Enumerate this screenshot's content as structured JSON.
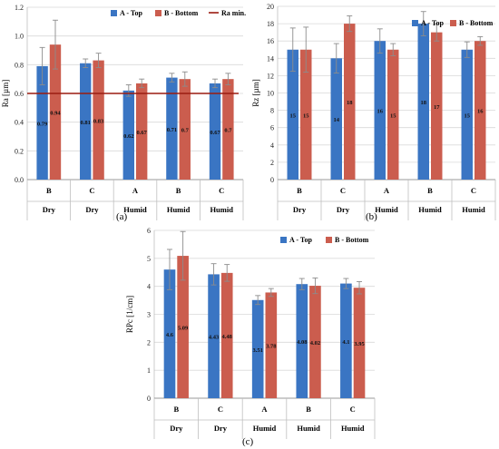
{
  "chart_data": [
    {
      "type": "bar",
      "panel_label": "(a)",
      "ylabel": "Ra [µm]",
      "ylim": [
        0,
        1.2
      ],
      "yticks": [
        "0.0",
        "0.2",
        "0.4",
        "0.6",
        "0.8",
        "1.0",
        "1.2"
      ],
      "categories": [
        "B",
        "C",
        "A",
        "B",
        "C"
      ],
      "groups": [
        "Dry",
        "Dry",
        "Humid",
        "Humid",
        "Humid"
      ],
      "series": [
        {
          "name": "A - Top",
          "color": "#3a75c3",
          "values": [
            0.79,
            0.81,
            0.62,
            0.71,
            0.67
          ],
          "labels": [
            "0.79",
            "0.81",
            "0.62",
            "0.71",
            "0.67"
          ],
          "errors": [
            0.13,
            0.03,
            0.04,
            0.03,
            0.03
          ]
        },
        {
          "name": "B - Bottom",
          "color": "#cb5d4e",
          "values": [
            0.94,
            0.83,
            0.67,
            0.7,
            0.7
          ],
          "labels": [
            "0.94",
            "0.83",
            "0.67",
            "0.7",
            "0.7"
          ],
          "errors": [
            0.17,
            0.05,
            0.03,
            0.05,
            0.04
          ]
        }
      ],
      "reference_line": {
        "name": "Ra min.",
        "value": 0.6,
        "color": "#9b1c10"
      },
      "legend": "top"
    },
    {
      "type": "bar",
      "panel_label": "(b)",
      "ylabel": "Rz [µm]",
      "ylim": [
        0,
        20
      ],
      "yticks": [
        "0",
        "2",
        "4",
        "6",
        "8",
        "10",
        "12",
        "14",
        "16",
        "18",
        "20"
      ],
      "categories": [
        "B",
        "C",
        "A",
        "B",
        "C"
      ],
      "groups": [
        "Dry",
        "Dry",
        "Humid",
        "Humid",
        "Humid"
      ],
      "series": [
        {
          "name": "A - Top",
          "color": "#3a75c3",
          "values": [
            15,
            14,
            16,
            18,
            15
          ],
          "labels": [
            "15",
            "14",
            "16",
            "18",
            "15"
          ],
          "errors": [
            2.5,
            1.7,
            1.4,
            1.4,
            0.9
          ]
        },
        {
          "name": "B - Bottom",
          "color": "#cb5d4e",
          "values": [
            15,
            18,
            15,
            17,
            16
          ],
          "labels": [
            "15",
            "18",
            "15",
            "17",
            "16"
          ],
          "errors": [
            2.6,
            0.9,
            0.7,
            1.0,
            0.5
          ]
        }
      ],
      "legend": "top-right"
    },
    {
      "type": "bar",
      "panel_label": "(c)",
      "ylabel": "RPc [1/cm]",
      "ylim": [
        0,
        6
      ],
      "yticks": [
        "0",
        "1",
        "2",
        "3",
        "4",
        "5",
        "6"
      ],
      "categories": [
        "B",
        "C",
        "A",
        "B",
        "C"
      ],
      "groups": [
        "Dry",
        "Dry",
        "Humid",
        "Humid",
        "Humid"
      ],
      "series": [
        {
          "name": "A - Top",
          "color": "#3a75c3",
          "values": [
            4.6,
            4.43,
            3.51,
            4.08,
            4.1
          ],
          "labels": [
            "4.6",
            "4.43",
            "3.51",
            "4.08",
            "4.1"
          ],
          "errors": [
            0.72,
            0.38,
            0.16,
            0.2,
            0.18
          ]
        },
        {
          "name": "B - Bottom",
          "color": "#cb5d4e",
          "values": [
            5.09,
            4.48,
            3.78,
            4.02,
            3.95
          ],
          "labels": [
            "5.09",
            "4.48",
            "3.78",
            "4.02",
            "3.95"
          ],
          "errors": [
            0.87,
            0.3,
            0.14,
            0.28,
            0.22
          ]
        }
      ],
      "legend": "top-right"
    }
  ]
}
